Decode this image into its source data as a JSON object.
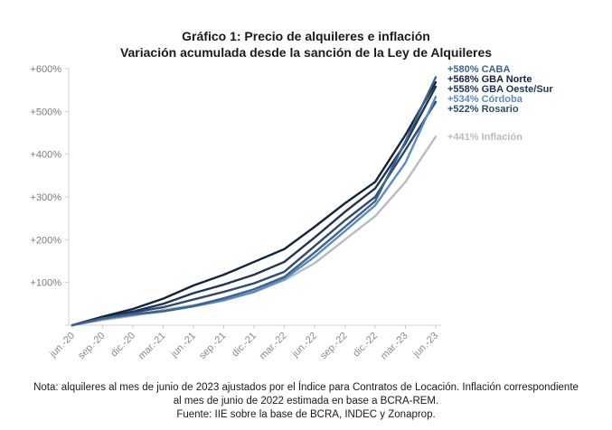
{
  "chart_data": {
    "type": "line",
    "title": "Gráfico 1: Precio de alquileres e inflación",
    "subtitle": "Variación acumulada desde la sanción de la Ley de Alquileres",
    "xlabel": "",
    "ylabel": "",
    "ylim": [
      0,
      600
    ],
    "yticks": [
      "",
      "+100%",
      "+200%",
      "+300%",
      "+400%",
      "+500%",
      "+600%"
    ],
    "grid": false,
    "x_ticks": [
      "jun.-20",
      "sep.-20",
      "dic.-20",
      "mar.-21",
      "jun.-21",
      "sep.-21",
      "dic.-21",
      "mar.-22",
      "jun.-22",
      "sep.-22",
      "dic.-22",
      "mar.-23",
      "jun.-23"
    ],
    "series": [
      {
        "name": "CABA",
        "label": "+580% CABA",
        "color": "#3e6389",
        "values": [
          0,
          16,
          26,
          33,
          45,
          63,
          84,
          113,
          170,
          230,
          290,
          430,
          580
        ]
      },
      {
        "name": "GBA Norte",
        "label": "+568% GBA Norte",
        "color": "#14233c",
        "values": [
          0,
          20,
          38,
          62,
          93,
          118,
          148,
          178,
          230,
          285,
          335,
          445,
          568
        ]
      },
      {
        "name": "GBA Oeste/Sur",
        "label": "+558% GBA Oeste/Sur",
        "color": "#1f3552",
        "values": [
          0,
          18,
          32,
          50,
          75,
          95,
          118,
          148,
          205,
          265,
          320,
          425,
          558
        ]
      },
      {
        "name": "Córdoba",
        "label": "+534% Córdoba",
        "color": "#5b8ac4",
        "values": [
          0,
          14,
          24,
          32,
          44,
          58,
          78,
          108,
          160,
          220,
          280,
          380,
          534
        ]
      },
      {
        "name": "Rosario",
        "label": "+522% Rosario",
        "color": "#2f4a6e",
        "values": [
          0,
          17,
          30,
          42,
          60,
          78,
          98,
          125,
          185,
          245,
          300,
          410,
          522
        ]
      },
      {
        "name": "Inflación",
        "label": "+441% Inflación",
        "color": "#b8bcc2",
        "values": [
          0,
          12,
          22,
          36,
          47,
          60,
          77,
          105,
          145,
          200,
          255,
          335,
          441
        ]
      }
    ]
  },
  "notes": {
    "line1": "Nota: alquileres al mes de junio de 2023 ajustados por el Índice para Contratos de Locación. Inflación correspondiente",
    "line2": "al mes de junio de 2022 estimada en base a BCRA-REM.",
    "line3": "Fuente: IIE sobre la base de BCRA, INDEC y Zonaprop."
  }
}
